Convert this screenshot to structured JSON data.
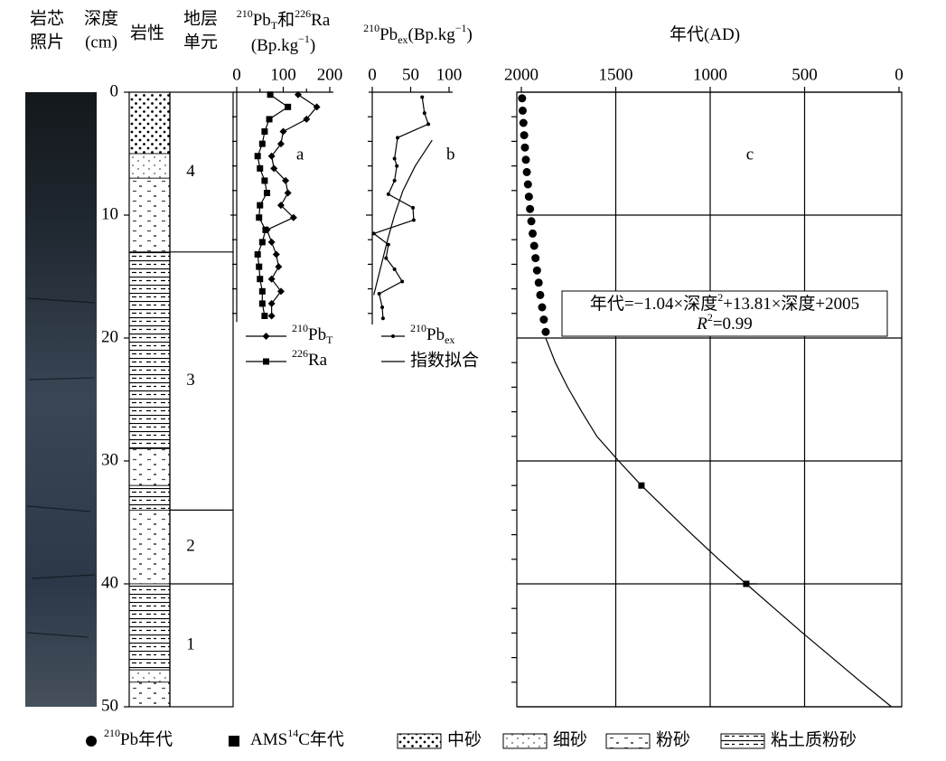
{
  "headers": {
    "photo": [
      "岩芯",
      "照片"
    ],
    "depth": [
      "深度",
      "(cm)"
    ],
    "lithology": "岩性",
    "unit": [
      "地层",
      "单元"
    ]
  },
  "depth_axis": {
    "ylim": [
      0,
      50
    ],
    "yticks": [
      0,
      10,
      20,
      30,
      40,
      50
    ],
    "yticks_minor": [
      2,
      4,
      6,
      8,
      12,
      14,
      16,
      18,
      22,
      24,
      26,
      28,
      32,
      34,
      36,
      38,
      42,
      44,
      46,
      48
    ]
  },
  "lithology": {
    "types": [
      {
        "name": "中砂",
        "pattern": "coarse"
      },
      {
        "name": "细砂",
        "pattern": "fine"
      },
      {
        "name": "粉砂",
        "pattern": "silt"
      },
      {
        "name": "粘土质粉砂",
        "pattern": "clay"
      }
    ],
    "layers": [
      {
        "top": 0,
        "bottom": 5,
        "type": 0
      },
      {
        "top": 5,
        "bottom": 7,
        "type": 1
      },
      {
        "top": 7,
        "bottom": 13,
        "type": 2
      },
      {
        "top": 13,
        "bottom": 29,
        "type": 3
      },
      {
        "top": 29,
        "bottom": 32,
        "type": 2
      },
      {
        "top": 32,
        "bottom": 34,
        "type": 3
      },
      {
        "top": 34,
        "bottom": 40,
        "type": 2
      },
      {
        "top": 40,
        "bottom": 47,
        "type": 3
      },
      {
        "top": 47,
        "bottom": 48,
        "type": 1
      },
      {
        "top": 48,
        "bottom": 50,
        "type": 2
      }
    ]
  },
  "units": {
    "boundaries": [
      13,
      34,
      40
    ],
    "labels": [
      "4",
      "3",
      "2",
      "1"
    ]
  },
  "chart_data": [
    {
      "type": "line",
      "xlabel": [
        [
          {
            "text": "210",
            "pos": "sup"
          },
          {
            "text": "Pb"
          },
          {
            "text": "T",
            "pos": "sub"
          },
          {
            "text": "和"
          },
          {
            "text": "226",
            "pos": "sup"
          },
          {
            "text": "Ra"
          }
        ],
        [
          {
            "text": "(Bp.kg"
          },
          {
            "text": "−1",
            "pos": "sup"
          },
          {
            "text": ")"
          }
        ]
      ],
      "xlim": [
        0,
        200
      ],
      "xticks": [
        0,
        100,
        200
      ],
      "xticks_minor": [
        50,
        150
      ],
      "annotation": "a",
      "series": [
        {
          "name": [
            {
              "text": "210",
              "pos": "sup"
            },
            {
              "text": "Pb"
            },
            {
              "text": "T",
              "pos": "sub"
            }
          ],
          "marker": "diamond",
          "color": "#000000",
          "depth": [
            0.2,
            1.2,
            2.2,
            3.2,
            4.2,
            5.2,
            6.2,
            7.2,
            8.2,
            9.2,
            10.2,
            11.2,
            12.2,
            13.2,
            14.2,
            15.2,
            16.2,
            17.2,
            18.2
          ],
          "values": [
            132,
            172,
            150,
            100,
            95,
            75,
            80,
            105,
            110,
            95,
            122,
            65,
            75,
            85,
            90,
            75,
            95,
            75,
            75
          ]
        },
        {
          "name": [
            {
              "text": "226",
              "pos": "sup"
            },
            {
              "text": "Ra"
            }
          ],
          "marker": "square",
          "color": "#000000",
          "depth": [
            0.2,
            1.2,
            2.2,
            3.2,
            4.2,
            5.2,
            6.2,
            7.2,
            8.2,
            9.2,
            10.2,
            11.2,
            12.2,
            13.2,
            14.2,
            15.2,
            16.2,
            17.2,
            18.2
          ],
          "values": [
            72,
            110,
            70,
            60,
            55,
            45,
            50,
            60,
            65,
            50,
            48,
            62,
            55,
            45,
            48,
            50,
            55,
            55,
            60
          ]
        }
      ]
    },
    {
      "type": "line",
      "xlabel": [
        [
          {
            "text": "210",
            "pos": "sup"
          },
          {
            "text": "Pb"
          },
          {
            "text": "ex",
            "pos": "sub"
          },
          {
            "text": "(Bp.kg"
          },
          {
            "text": "−1",
            "pos": "sup"
          },
          {
            "text": ")"
          }
        ]
      ],
      "xlim": [
        0,
        100
      ],
      "xticks": [
        0,
        50,
        100
      ],
      "annotation": "b",
      "series": [
        {
          "name": [
            {
              "text": "210",
              "pos": "sup"
            },
            {
              "text": "Pb"
            },
            {
              "text": "ex",
              "pos": "sub"
            }
          ],
          "marker": "dot",
          "color": "#000000",
          "depth": [
            0.4,
            1.7,
            2.6,
            3.7,
            5.4,
            6.0,
            7.2,
            8.3,
            9.4,
            10.4,
            11.5,
            12.4,
            13.5,
            14.4,
            15.4,
            16.4,
            17.5,
            18.4
          ],
          "values": [
            65,
            68,
            73,
            33,
            29,
            32,
            29,
            21,
            53,
            54,
            2,
            21,
            18,
            29,
            39,
            9,
            13,
            14
          ]
        },
        {
          "name": "指数拟合",
          "marker": "none",
          "color": "#000000",
          "depth": [
            3.9,
            6,
            8,
            10,
            12,
            14,
            16.5
          ],
          "values": [
            78,
            56,
            40,
            29,
            20,
            12,
            2
          ]
        }
      ]
    },
    {
      "type": "line",
      "xlabel": [
        [
          {
            "text": "年代(AD)"
          }
        ]
      ],
      "xlim": [
        2000,
        0
      ],
      "xticks": [
        2000,
        1500,
        1000,
        500,
        0
      ],
      "grid": true,
      "annotation": "c",
      "equation": [
        [
          {
            "text": "年代=−1.04×深度"
          },
          {
            "text": "2",
            "pos": "sup"
          },
          {
            "text": "+13.81×深度+2005"
          }
        ],
        [
          {
            "text": "R",
            "pos": "italic"
          },
          {
            "text": "2",
            "pos": "sup"
          },
          {
            "text": "=0.99"
          }
        ]
      ],
      "series": [
        {
          "name": [
            {
              "text": "210",
              "pos": "sup"
            },
            {
              "text": "Pb年代"
            }
          ],
          "marker": "circle",
          "line": false,
          "color": "#000000",
          "depth": [
            0.5,
            1.5,
            2.5,
            3.5,
            4.5,
            5.5,
            6.5,
            7.5,
            8.5,
            9.5,
            10.5,
            11.5,
            12.5,
            13.5,
            14.5,
            15.5,
            16.5,
            17.5,
            18.5,
            19.5
          ],
          "values": [
            1996,
            1993,
            1989,
            1985,
            1981,
            1976,
            1971,
            1965,
            1960,
            1954,
            1947,
            1940,
            1932,
            1925,
            1917,
            1908,
            1900,
            1890,
            1881,
            1871
          ]
        },
        {
          "name": [
            {
              "text": "AMS"
            },
            {
              "text": "14",
              "pos": "sup"
            },
            {
              "text": "C年代"
            }
          ],
          "marker": "square",
          "line": false,
          "color": "#000000",
          "depth": [
            32,
            40
          ],
          "values": [
            1364,
            809
          ],
          "errors": [
            15,
            57
          ]
        },
        {
          "marker": "none",
          "color": "#000000",
          "depth": [
            20,
            22,
            24,
            26,
            28,
            30,
            32,
            34,
            36,
            38,
            40,
            42,
            44,
            46,
            48,
            50
          ],
          "values": [
            1871,
            1820,
            1755,
            1680,
            1600,
            1485,
            1364,
            1230,
            1095,
            955,
            809,
            660,
            510,
            355,
            200,
            40
          ]
        }
      ]
    }
  ]
}
